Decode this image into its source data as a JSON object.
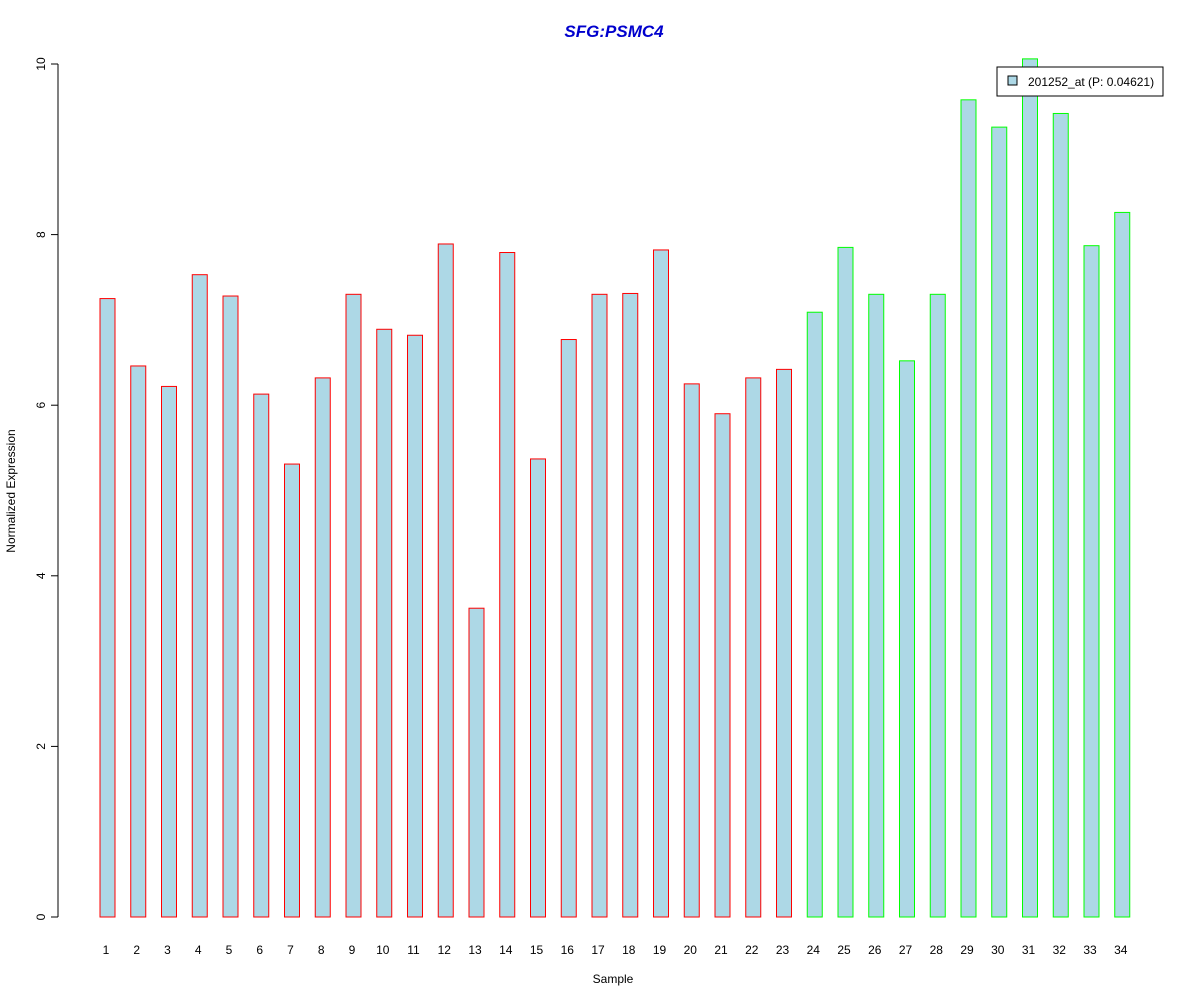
{
  "chart_data": {
    "type": "bar",
    "title": "SFG:PSMC4",
    "xlabel": "Sample",
    "ylabel": "Normalized Expression",
    "ylim": [
      0,
      10
    ],
    "yticks": [
      0,
      2,
      4,
      6,
      8,
      10
    ],
    "grid": false,
    "legend_position": "top-right",
    "categories": [
      "1",
      "2",
      "3",
      "4",
      "5",
      "6",
      "7",
      "8",
      "9",
      "10",
      "11",
      "12",
      "13",
      "14",
      "15",
      "16",
      "17",
      "18",
      "19",
      "20",
      "21",
      "22",
      "23",
      "24",
      "25",
      "26",
      "27",
      "28",
      "29",
      "30",
      "31",
      "32",
      "33",
      "34"
    ],
    "series": [
      {
        "name": "201252_at (P: 0.04621)",
        "values": [
          7.25,
          6.46,
          6.22,
          7.53,
          7.28,
          6.13,
          5.31,
          6.32,
          7.3,
          6.89,
          6.82,
          7.89,
          3.62,
          7.79,
          5.37,
          6.77,
          7.3,
          7.31,
          7.82,
          6.25,
          5.9,
          6.32,
          6.42,
          7.09,
          7.85,
          7.3,
          6.52,
          7.3,
          9.58,
          9.26,
          10.06,
          9.42,
          7.87,
          8.26
        ]
      }
    ],
    "bar_group_of_sample": [
      "red",
      "red",
      "red",
      "red",
      "red",
      "red",
      "red",
      "red",
      "red",
      "red",
      "red",
      "red",
      "red",
      "red",
      "red",
      "red",
      "red",
      "red",
      "red",
      "red",
      "red",
      "red",
      "red",
      "green",
      "green",
      "green",
      "green",
      "green",
      "green",
      "green",
      "green",
      "green",
      "green",
      "green"
    ]
  },
  "colors": {
    "bar_fill": "#add8e6",
    "red_border": "#ff0000",
    "green_border": "#00ff00",
    "title": "#0000cd",
    "axis": "#000000"
  }
}
